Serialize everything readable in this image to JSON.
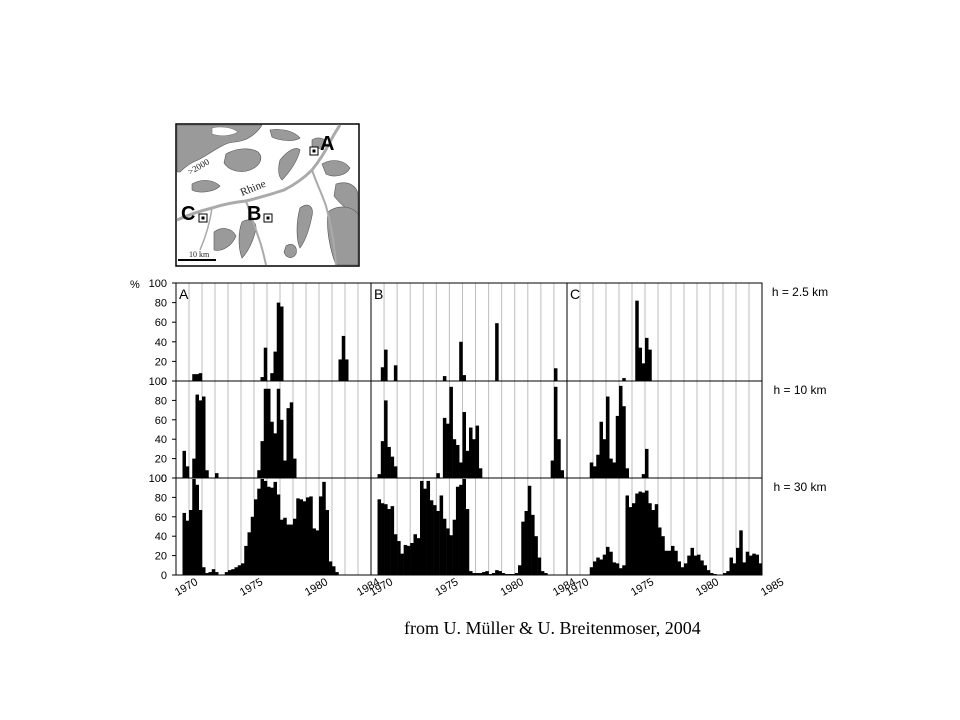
{
  "map": {
    "labels": {
      "A": "A",
      "B": "B",
      "C": "C"
    },
    "river": "Rhine",
    "elevation": ">2000",
    "scale": "10 km"
  },
  "caption": "from U. Müller & U. Breitenmoser, 2004",
  "chart_data": {
    "type": "bar",
    "ylabel": "%",
    "ylim": [
      0,
      100
    ],
    "yticks": [
      0,
      20,
      40,
      60,
      80,
      100
    ],
    "panels": [
      {
        "label": "A",
        "xstart": 1970,
        "xend": 1985,
        "xticks": [
          1970,
          1975,
          1980,
          1984
        ]
      },
      {
        "label": "B",
        "xstart": 1970,
        "xend": 1985,
        "xticks": [
          1970,
          1975,
          1980,
          1984
        ]
      },
      {
        "label": "C",
        "xstart": 1970,
        "xend": 1985,
        "xticks": [
          1970,
          1975,
          1980,
          1985
        ]
      }
    ],
    "rows": [
      {
        "label": "h = 2.5 km",
        "series": [
          {
            "panel": "A",
            "values": [
              0,
              0,
              0,
              0,
              0,
              7,
              7,
              8,
              0,
              0,
              0,
              0,
              0,
              0,
              0,
              0,
              0,
              0,
              0,
              0,
              0,
              0,
              0,
              0,
              0,
              0,
              4,
              34,
              0,
              8,
              30,
              80,
              76,
              0,
              0,
              0,
              0,
              0,
              0,
              0,
              0,
              0,
              0,
              0,
              0,
              0,
              0,
              0,
              0,
              0,
              22,
              46,
              22,
              0,
              0,
              0,
              0,
              0,
              0,
              0
            ]
          },
          {
            "panel": "B",
            "values": [
              0,
              0,
              0,
              14,
              32,
              0,
              0,
              16,
              0,
              0,
              0,
              0,
              0,
              0,
              0,
              0,
              0,
              0,
              0,
              0,
              0,
              0,
              5,
              0,
              0,
              0,
              0,
              40,
              6,
              0,
              0,
              0,
              0,
              0,
              0,
              0,
              0,
              0,
              59,
              0,
              0,
              0,
              0,
              0,
              0,
              0,
              0,
              0,
              0,
              0,
              0,
              0,
              0,
              0,
              0,
              0,
              13,
              0,
              0,
              0
            ]
          },
          {
            "panel": "C",
            "values": [
              0,
              0,
              0,
              0,
              0,
              0,
              0,
              0,
              0,
              0,
              0,
              0,
              0,
              0,
              0,
              0,
              0,
              3,
              0,
              0,
              0,
              82,
              34,
              18,
              44,
              32,
              0,
              0,
              0,
              0,
              0,
              0,
              0,
              0,
              0,
              0,
              0,
              0,
              0,
              0,
              0,
              0,
              0,
              0,
              0,
              0,
              0,
              0,
              0,
              0,
              0,
              0,
              0,
              0,
              0,
              0,
              0,
              0,
              0,
              0
            ]
          }
        ]
      },
      {
        "label": "h = 10 km",
        "series": [
          {
            "panel": "A",
            "values": [
              0,
              0,
              28,
              12,
              0,
              20,
              86,
              80,
              84,
              8,
              0,
              0,
              5,
              0,
              0,
              0,
              0,
              0,
              0,
              0,
              0,
              0,
              0,
              0,
              0,
              8,
              38,
              92,
              92,
              58,
              46,
              92,
              60,
              18,
              72,
              78,
              20,
              0,
              0,
              0,
              0,
              0,
              0,
              0,
              0,
              0,
              0,
              0,
              0,
              0,
              0,
              0,
              0,
              0,
              0,
              0,
              0,
              0,
              0,
              0
            ]
          },
          {
            "panel": "B",
            "values": [
              0,
              0,
              4,
              38,
              80,
              32,
              22,
              12,
              0,
              0,
              0,
              0,
              0,
              0,
              0,
              0,
              0,
              0,
              0,
              0,
              5,
              0,
              62,
              56,
              94,
              40,
              34,
              16,
              68,
              28,
              52,
              40,
              54,
              10,
              0,
              0,
              0,
              0,
              0,
              0,
              0,
              0,
              0,
              0,
              0,
              0,
              0,
              0,
              0,
              0,
              0,
              0,
              0,
              0,
              0,
              18,
              94,
              40,
              8,
              0
            ]
          },
          {
            "panel": "C",
            "values": [
              0,
              0,
              0,
              0,
              0,
              0,
              0,
              16,
              12,
              24,
              58,
              40,
              84,
              20,
              16,
              64,
              95,
              74,
              10,
              0,
              0,
              0,
              0,
              4,
              30,
              0,
              0,
              0,
              0,
              0,
              0,
              0,
              0,
              0,
              0,
              0,
              0,
              0,
              0,
              0,
              0,
              0,
              0,
              0,
              0,
              0,
              0,
              0,
              0,
              0,
              0,
              0,
              0,
              0,
              0,
              0,
              0,
              0,
              0,
              0
            ]
          }
        ]
      },
      {
        "label": "h = 30 km",
        "series": [
          {
            "panel": "A",
            "values": [
              0,
              0,
              64,
              56,
              67,
              99,
              93,
              67,
              8,
              2,
              3,
              6,
              3,
              0,
              0,
              3,
              5,
              6,
              8,
              10,
              12,
              30,
              44,
              60,
              78,
              89,
              99,
              97,
              91,
              90,
              96,
              83,
              57,
              59,
              52,
              52,
              58,
              79,
              78,
              76,
              80,
              81,
              48,
              46,
              81,
              96,
              67,
              14,
              9,
              3,
              0,
              0,
              0,
              0,
              0,
              0,
              0,
              0,
              0,
              0
            ]
          },
          {
            "panel": "B",
            "values": [
              0,
              0,
              78,
              74,
              73,
              68,
              71,
              42,
              35,
              22,
              31,
              30,
              33,
              42,
              38,
              97,
              89,
              97,
              77,
              72,
              66,
              82,
              58,
              48,
              41,
              57,
              91,
              93,
              99,
              68,
              4,
              2,
              2,
              2,
              3,
              4,
              1,
              2,
              5,
              4,
              2,
              1,
              1,
              1,
              2,
              10,
              55,
              66,
              92,
              62,
              40,
              18,
              4,
              2,
              0,
              0,
              0,
              0,
              0,
              0
            ]
          },
          {
            "panel": "C",
            "values": [
              0,
              0,
              0,
              0,
              0,
              0,
              0,
              8,
              14,
              18,
              16,
              21,
              29,
              24,
              13,
              12,
              7,
              10,
              82,
              70,
              74,
              84,
              86,
              85,
              87,
              74,
              67,
              73,
              49,
              40,
              25,
              25,
              30,
              25,
              14,
              8,
              12,
              20,
              28,
              20,
              21,
              15,
              10,
              5,
              2,
              1,
              0,
              0,
              2,
              4,
              18,
              12,
              28,
              46,
              13,
              24,
              20,
              22,
              21,
              12
            ]
          }
        ]
      }
    ]
  }
}
